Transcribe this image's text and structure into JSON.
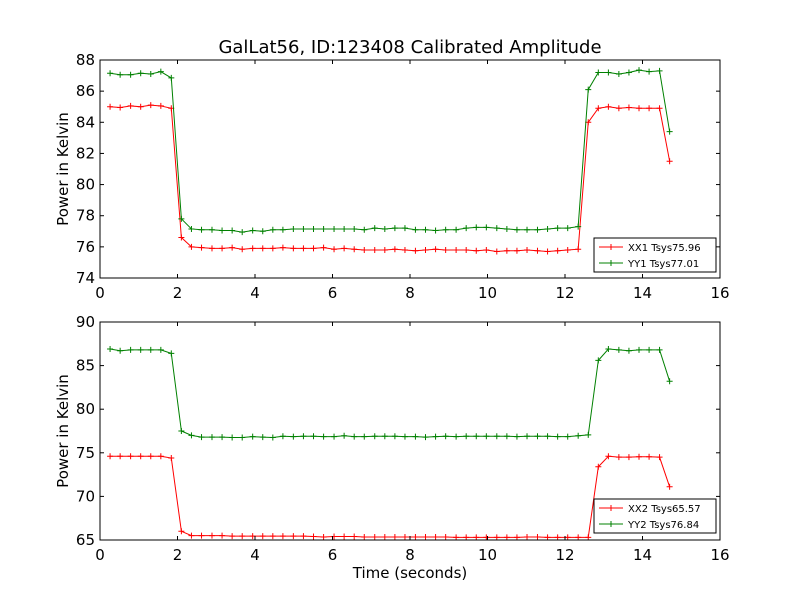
{
  "chart_data": [
    {
      "type": "line",
      "title": "GalLat56, ID:123408 Calibrated Amplitude",
      "xlabel": "",
      "ylabel": "Power in Kelvin",
      "xlim": [
        0,
        16
      ],
      "ylim": [
        74,
        88
      ],
      "xticks": [
        0,
        2,
        4,
        6,
        8,
        10,
        12,
        14,
        16
      ],
      "yticks": [
        74,
        76,
        78,
        80,
        82,
        84,
        86,
        88
      ],
      "legend_position": "lower-right",
      "x": [
        0.26,
        0.52,
        0.79,
        1.05,
        1.31,
        1.57,
        1.84,
        2.1,
        2.36,
        2.62,
        2.89,
        3.15,
        3.41,
        3.67,
        3.94,
        4.2,
        4.46,
        4.72,
        4.99,
        5.25,
        5.51,
        5.77,
        6.04,
        6.3,
        6.56,
        6.82,
        7.09,
        7.35,
        7.61,
        7.87,
        8.14,
        8.4,
        8.66,
        8.92,
        9.19,
        9.45,
        9.71,
        9.97,
        10.24,
        10.5,
        10.76,
        11.02,
        11.29,
        11.55,
        11.81,
        12.07,
        12.34,
        12.6,
        12.86,
        13.12,
        13.39,
        13.65,
        13.91,
        14.17,
        14.44,
        14.7
      ],
      "series": [
        {
          "name": "XX1 Tsys75.96",
          "color": "#ff0000",
          "values": [
            85.0,
            84.95,
            85.05,
            85.0,
            85.1,
            85.05,
            84.9,
            76.6,
            76.0,
            75.95,
            75.9,
            75.9,
            75.95,
            75.85,
            75.9,
            75.9,
            75.9,
            75.95,
            75.9,
            75.9,
            75.9,
            75.95,
            75.85,
            75.9,
            75.85,
            75.8,
            75.8,
            75.8,
            75.85,
            75.8,
            75.75,
            75.8,
            75.85,
            75.8,
            75.8,
            75.8,
            75.75,
            75.8,
            75.7,
            75.75,
            75.75,
            75.8,
            75.75,
            75.7,
            75.75,
            75.8,
            75.85,
            84.0,
            84.9,
            85.0,
            84.9,
            84.95,
            84.9,
            84.9,
            84.9,
            81.5
          ]
        },
        {
          "name": "YY1 Tsys77.01",
          "color": "#008000",
          "values": [
            87.15,
            87.05,
            87.05,
            87.15,
            87.1,
            87.25,
            86.85,
            77.8,
            77.15,
            77.1,
            77.1,
            77.05,
            77.05,
            76.95,
            77.05,
            77.0,
            77.1,
            77.1,
            77.15,
            77.15,
            77.15,
            77.15,
            77.15,
            77.15,
            77.15,
            77.1,
            77.2,
            77.15,
            77.2,
            77.2,
            77.1,
            77.1,
            77.05,
            77.1,
            77.1,
            77.2,
            77.25,
            77.25,
            77.2,
            77.15,
            77.1,
            77.1,
            77.1,
            77.15,
            77.2,
            77.2,
            77.3,
            86.1,
            87.2,
            87.2,
            87.1,
            87.2,
            87.35,
            87.25,
            87.3,
            83.4
          ]
        }
      ]
    },
    {
      "type": "line",
      "title": "",
      "xlabel": "Time (seconds)",
      "ylabel": "Power in Kelvin",
      "xlim": [
        0,
        16
      ],
      "ylim": [
        65,
        90
      ],
      "xticks": [
        0,
        2,
        4,
        6,
        8,
        10,
        12,
        14,
        16
      ],
      "yticks": [
        65,
        70,
        75,
        80,
        85,
        90
      ],
      "legend_position": "lower-right",
      "x": [
        0.26,
        0.52,
        0.79,
        1.05,
        1.31,
        1.57,
        1.84,
        2.1,
        2.36,
        2.62,
        2.89,
        3.15,
        3.41,
        3.67,
        3.94,
        4.2,
        4.46,
        4.72,
        4.99,
        5.25,
        5.51,
        5.77,
        6.04,
        6.3,
        6.56,
        6.82,
        7.09,
        7.35,
        7.61,
        7.87,
        8.14,
        8.4,
        8.66,
        8.92,
        9.19,
        9.45,
        9.71,
        9.97,
        10.24,
        10.5,
        10.76,
        11.02,
        11.29,
        11.55,
        11.81,
        12.07,
        12.34,
        12.6,
        12.86,
        13.12,
        13.39,
        13.65,
        13.91,
        14.17,
        14.44,
        14.7
      ],
      "series": [
        {
          "name": "XX2 Tsys65.57",
          "color": "#ff0000",
          "values": [
            74.6,
            74.6,
            74.6,
            74.6,
            74.6,
            74.6,
            74.4,
            66.0,
            65.5,
            65.5,
            65.5,
            65.5,
            65.45,
            65.45,
            65.45,
            65.45,
            65.45,
            65.45,
            65.45,
            65.45,
            65.4,
            65.35,
            65.4,
            65.4,
            65.4,
            65.35,
            65.35,
            65.35,
            65.35,
            65.35,
            65.35,
            65.35,
            65.35,
            65.35,
            65.3,
            65.3,
            65.3,
            65.3,
            65.3,
            65.3,
            65.3,
            65.35,
            65.35,
            65.3,
            65.3,
            65.3,
            65.3,
            65.3,
            73.4,
            74.6,
            74.5,
            74.5,
            74.55,
            74.55,
            74.5,
            71.1
          ]
        },
        {
          "name": "YY2 Tsys76.84",
          "color": "#008000",
          "values": [
            86.9,
            86.7,
            86.8,
            86.8,
            86.8,
            86.8,
            86.4,
            77.5,
            77.0,
            76.8,
            76.8,
            76.8,
            76.75,
            76.75,
            76.85,
            76.8,
            76.75,
            76.9,
            76.85,
            76.9,
            76.9,
            76.85,
            76.85,
            76.95,
            76.85,
            76.85,
            76.9,
            76.9,
            76.9,
            76.85,
            76.85,
            76.8,
            76.85,
            76.9,
            76.85,
            76.9,
            76.9,
            76.9,
            76.9,
            76.9,
            76.85,
            76.9,
            76.9,
            76.9,
            76.85,
            76.85,
            76.95,
            77.05,
            85.6,
            86.9,
            86.8,
            86.7,
            86.8,
            86.8,
            86.8,
            83.2
          ]
        }
      ]
    }
  ]
}
